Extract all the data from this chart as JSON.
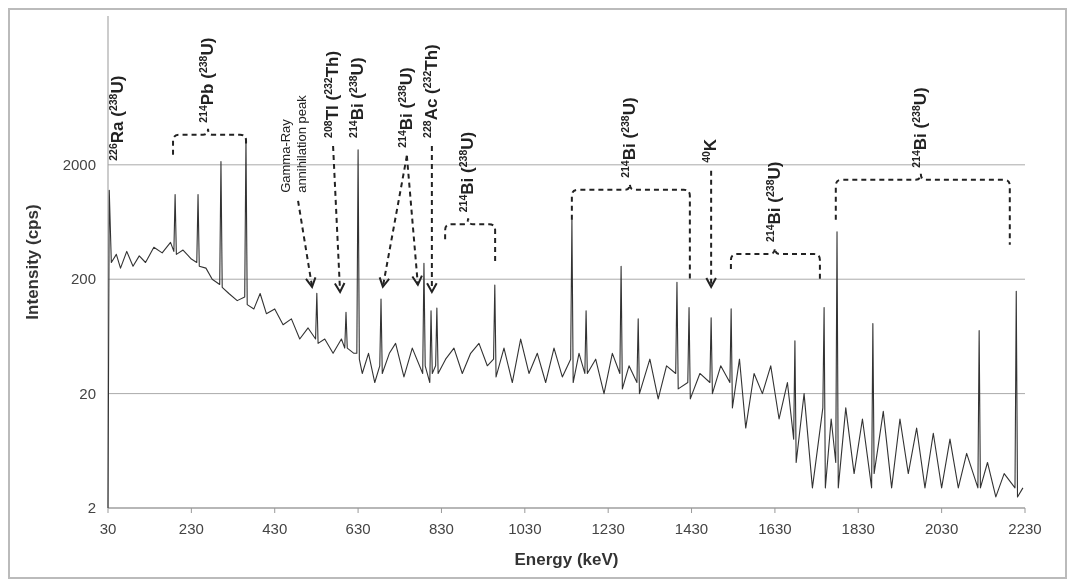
{
  "chart_data": {
    "type": "line",
    "xlabel": "Energy (keV)",
    "ylabel": "Intensity (cps)",
    "log": "y",
    "grid": "y",
    "marker": "none",
    "line_style": "solid",
    "xlim": [
      30,
      2230
    ],
    "xticks": [
      30,
      230,
      430,
      630,
      830,
      1030,
      1230,
      1430,
      1630,
      1830,
      2030,
      2230
    ],
    "ylim": [
      2,
      40000
    ],
    "yticks": [
      2,
      20,
      200,
      2000
    ],
    "series": [
      {
        "color": "#333333",
        "x": [
          30,
          33,
          38,
          50,
          60,
          75,
          90,
          105,
          120,
          140,
          160,
          180,
          188,
          191,
          194,
          210,
          230,
          243,
          246,
          249,
          265,
          280,
          298,
          301,
          304,
          320,
          340,
          358,
          361,
          364,
          380,
          395,
          410,
          430,
          450,
          470,
          490,
          510,
          528,
          531,
          534,
          550,
          570,
          590,
          598,
          601,
          604,
          620,
          627,
          630,
          633,
          640,
          655,
          670,
          682,
          685,
          688,
          705,
          720,
          740,
          760,
          785,
          788,
          791,
          802,
          805,
          808,
          816,
          819,
          822,
          840,
          860,
          880,
          900,
          920,
          940,
          955,
          958,
          961,
          980,
          1000,
          1020,
          1040,
          1060,
          1080,
          1100,
          1120,
          1140,
          1143,
          1146,
          1160,
          1174,
          1177,
          1180,
          1200,
          1220,
          1240,
          1258,
          1261,
          1264,
          1280,
          1299,
          1302,
          1305,
          1330,
          1350,
          1370,
          1392,
          1395,
          1398,
          1421,
          1424,
          1427,
          1450,
          1474,
          1477,
          1480,
          1500,
          1522,
          1525,
          1528,
          1545,
          1560,
          1580,
          1600,
          1620,
          1640,
          1660,
          1675,
          1678,
          1681,
          1700,
          1720,
          1745,
          1748,
          1751,
          1765,
          1776,
          1779,
          1782,
          1800,
          1820,
          1840,
          1862,
          1865,
          1868,
          1890,
          1910,
          1930,
          1950,
          1970,
          1990,
          2010,
          2030,
          2050,
          2070,
          2090,
          2117,
          2120,
          2123,
          2140,
          2160,
          2180,
          2206,
          2209,
          2212,
          2225
        ],
        "values": [
          2,
          1200,
          280,
          330,
          250,
          350,
          260,
          320,
          280,
          380,
          340,
          420,
          350,
          1100,
          330,
          360,
          300,
          280,
          1100,
          260,
          250,
          200,
          180,
          2140,
          170,
          150,
          130,
          140,
          3370,
          120,
          110,
          150,
          100,
          110,
          80,
          90,
          60,
          75,
          60,
          151,
          55,
          60,
          45,
          60,
          50,
          103,
          50,
          45,
          45,
          2700,
          40,
          30,
          45,
          25,
          35,
          134,
          30,
          45,
          55,
          28,
          50,
          30,
          276,
          35,
          25,
          106,
          30,
          35,
          112,
          30,
          40,
          50,
          30,
          45,
          55,
          35,
          40,
          178,
          28,
          50,
          25,
          60,
          30,
          45,
          25,
          50,
          28,
          40,
          666,
          25,
          45,
          30,
          106,
          30,
          40,
          20,
          45,
          30,
          260,
          22,
          35,
          25,
          90,
          20,
          40,
          18,
          35,
          30,
          188,
          22,
          25,
          113,
          18,
          30,
          25,
          92,
          20,
          35,
          25,
          110,
          15,
          40,
          10,
          30,
          20,
          35,
          12,
          25,
          8,
          58,
          5,
          20,
          3,
          15,
          113,
          3,
          12,
          5,
          520,
          3,
          15,
          4,
          12,
          3,
          82,
          4,
          14,
          3,
          12,
          4,
          10,
          3,
          9,
          3,
          8,
          3,
          6,
          3,
          71,
          3,
          5,
          2.5,
          4,
          3,
          157,
          2.5,
          3
        ]
      }
    ],
    "annotations": [
      "$^{226}$Ra ($^{238}$U)",
      "$^{214}$Pb ($^{238}$U)",
      "Gamma-Ray annihilation peak",
      "$^{208}$Tl ($^{232}$Th)",
      "$^{214}$Bi ($^{238}$U)",
      "$^{214}$Bi ($^{238}$U)",
      "$^{228}$Ac ($^{232}$Th)",
      "$^{214}$Bi ($^{238}$U)",
      "$^{214}$Bi ($^{238}$U)",
      "$^{40}$K",
      "$^{214}$Bi ($^{238}$U)",
      "$^{214}$Bi ($^{238}$U)"
    ]
  }
}
